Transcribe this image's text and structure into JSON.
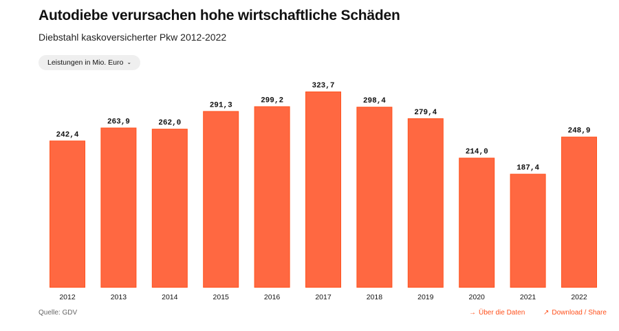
{
  "header": {
    "title": "Autodiebe verursachen hohe wirtschaftliche Schäden",
    "subtitle": "Diebstahl kaskoversicherter Pkw 2012-2022"
  },
  "selector": {
    "label": "Leistungen in Mio. Euro",
    "icon": "chevron-down-icon",
    "chevron": "⌄"
  },
  "footer": {
    "source": "Quelle: GDV",
    "links": [
      {
        "label": "Über die Daten",
        "icon": "arrow-right-icon",
        "glyph": "→"
      },
      {
        "label": "Download / Share",
        "icon": "arrow-up-right-icon",
        "glyph": "↗"
      }
    ]
  },
  "colors": {
    "bar": "#ff6841",
    "bar_edge": "#ff531f",
    "link": "#ff4f1a"
  },
  "chart_data": {
    "type": "bar",
    "title": "Autodiebe verursachen hohe wirtschaftliche Schäden",
    "subtitle": "Diebstahl kaskoversicherter Pkw 2012-2022",
    "xlabel": "",
    "ylabel": "Leistungen in Mio. Euro",
    "categories": [
      "2012",
      "2013",
      "2014",
      "2015",
      "2016",
      "2017",
      "2018",
      "2019",
      "2020",
      "2021",
      "2022"
    ],
    "values": [
      242.4,
      263.9,
      262.0,
      291.3,
      299.2,
      323.7,
      298.4,
      279.4,
      214.0,
      187.4,
      248.9
    ],
    "value_labels": [
      "242,4",
      "263,9",
      "262,0",
      "291,3",
      "299,2",
      "323,7",
      "298,4",
      "279,4",
      "214,0",
      "187,4",
      "248,9"
    ],
    "ylim": [
      0,
      323.7
    ],
    "grid": false,
    "legend": "none"
  }
}
